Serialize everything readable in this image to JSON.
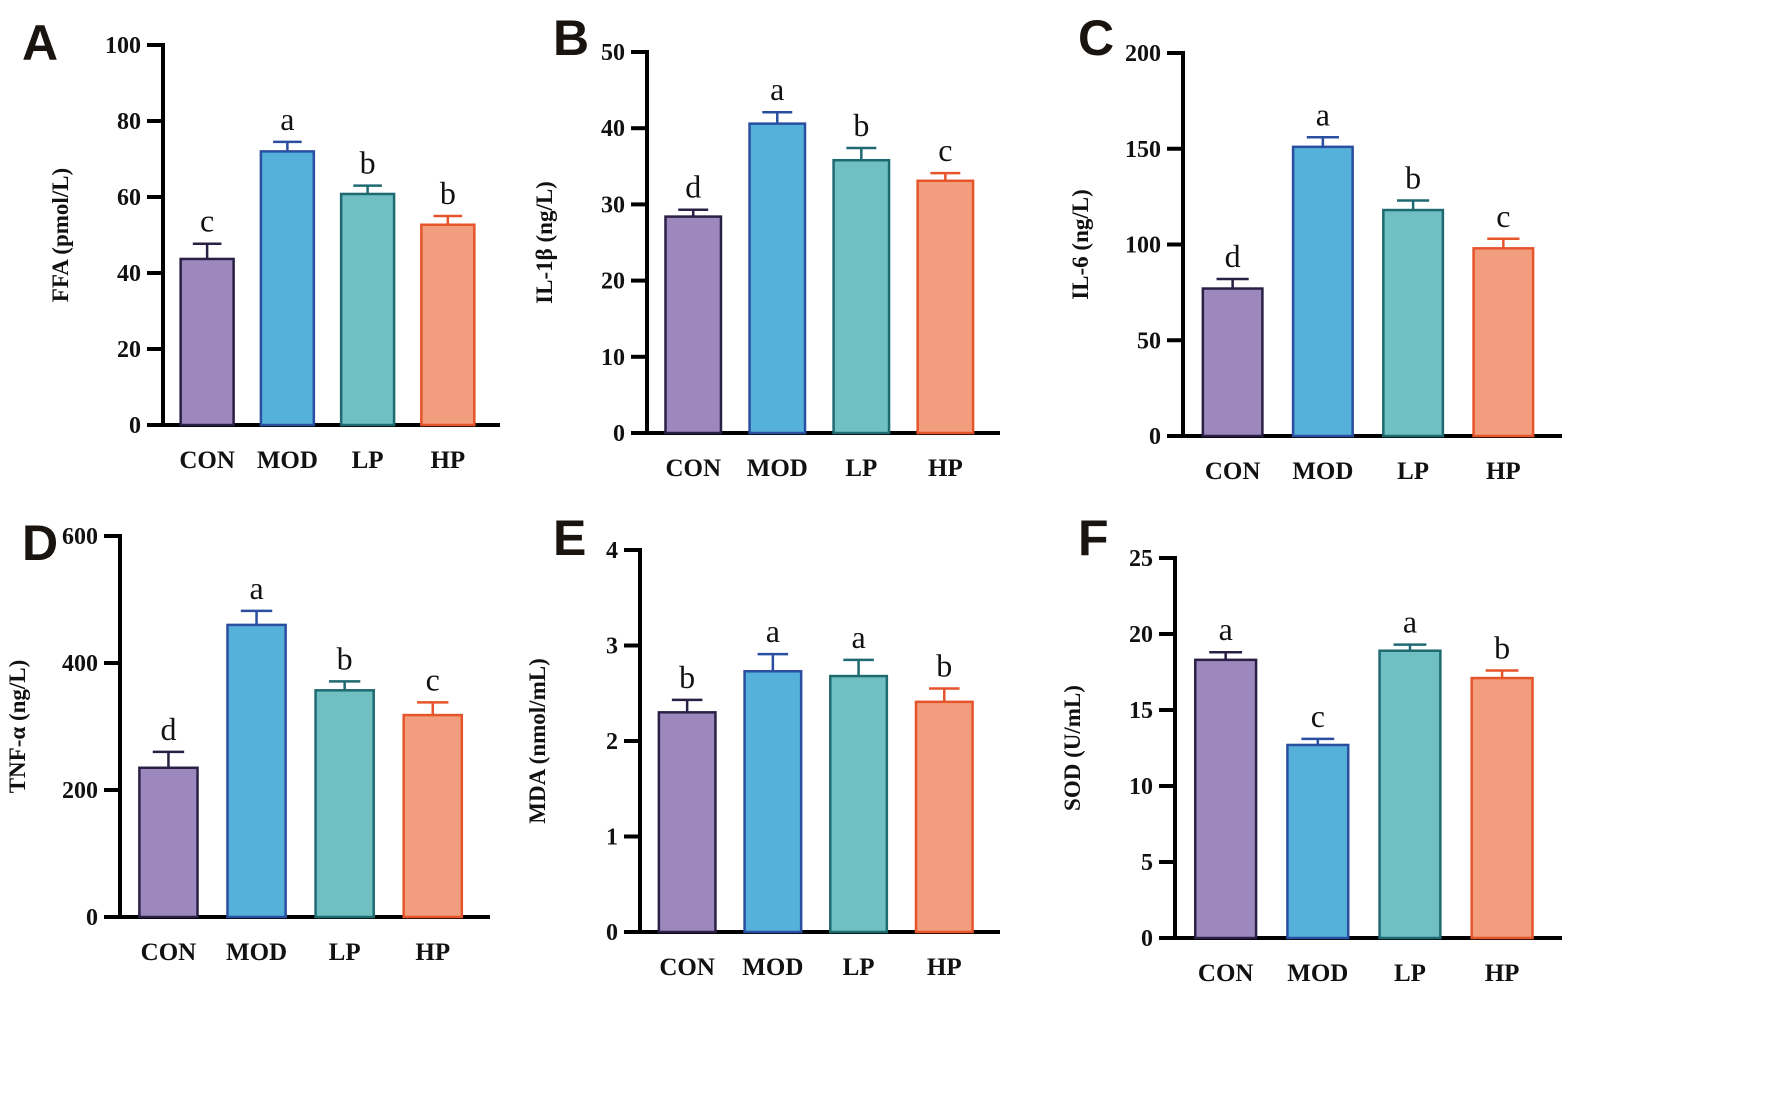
{
  "chart_data": [
    {
      "type": "bar",
      "panel": "A",
      "ylabel": "FFA (pmol/L)",
      "ylim": [
        0,
        100
      ],
      "yticks": [
        0,
        20,
        40,
        60,
        80,
        100
      ],
      "categories": [
        "CON",
        "MOD",
        "LP",
        "HP"
      ],
      "values": [
        43.7,
        72.0,
        60.8,
        52.7
      ],
      "errors": [
        4.0,
        2.5,
        2.2,
        2.3
      ],
      "letters": [
        "c",
        "a",
        "b",
        "b"
      ]
    },
    {
      "type": "bar",
      "panel": "B",
      "ylabel": "IL-1β (ng/L)",
      "ylim": [
        0,
        50
      ],
      "yticks": [
        0,
        10,
        20,
        30,
        40,
        50
      ],
      "categories": [
        "CON",
        "MOD",
        "LP",
        "HP"
      ],
      "values": [
        28.4,
        40.6,
        35.8,
        33.1
      ],
      "errors": [
        0.9,
        1.5,
        1.6,
        1.0
      ],
      "letters": [
        "d",
        "a",
        "b",
        "c"
      ]
    },
    {
      "type": "bar",
      "panel": "C",
      "ylabel": "IL-6 (ng/L)",
      "ylim": [
        0,
        200
      ],
      "yticks": [
        0,
        50,
        100,
        150,
        200
      ],
      "categories": [
        "CON",
        "MOD",
        "LP",
        "HP"
      ],
      "values": [
        77,
        151,
        118,
        98
      ],
      "errors": [
        5,
        5,
        5,
        5
      ],
      "letters": [
        "d",
        "a",
        "b",
        "c"
      ]
    },
    {
      "type": "bar",
      "panel": "D",
      "ylabel": "TNF-α (ng/L)",
      "ylim": [
        0,
        600
      ],
      "yticks": [
        0,
        200,
        400,
        600
      ],
      "categories": [
        "CON",
        "MOD",
        "LP",
        "HP"
      ],
      "values": [
        235,
        460,
        357,
        318
      ],
      "errors": [
        25,
        22,
        14,
        20
      ],
      "letters": [
        "d",
        "a",
        "b",
        "c"
      ]
    },
    {
      "type": "bar",
      "panel": "E",
      "ylabel": "MDA (nmol/mL)",
      "ylim": [
        0,
        4
      ],
      "yticks": [
        0,
        1,
        2,
        3,
        4
      ],
      "categories": [
        "CON",
        "MOD",
        "LP",
        "HP"
      ],
      "values": [
        2.3,
        2.73,
        2.68,
        2.41
      ],
      "errors": [
        0.13,
        0.18,
        0.17,
        0.14
      ],
      "letters": [
        "b",
        "a",
        "a",
        "b"
      ]
    },
    {
      "type": "bar",
      "panel": "F",
      "ylabel": "SOD (U/mL)",
      "ylim": [
        0,
        25
      ],
      "yticks": [
        0,
        5,
        10,
        15,
        20,
        25
      ],
      "categories": [
        "CON",
        "MOD",
        "LP",
        "HP"
      ],
      "values": [
        18.3,
        12.7,
        18.9,
        17.1
      ],
      "errors": [
        0.5,
        0.4,
        0.4,
        0.5
      ],
      "letters": [
        "a",
        "c",
        "a",
        "b"
      ]
    }
  ],
  "colors": {
    "fill": [
      "#9d88bd",
      "#55b0da",
      "#6fbfc3",
      "#f29e7e"
    ],
    "stroke": [
      "#2a1f45",
      "#2a4fa0",
      "#1f6a70",
      "#e5542a"
    ]
  }
}
